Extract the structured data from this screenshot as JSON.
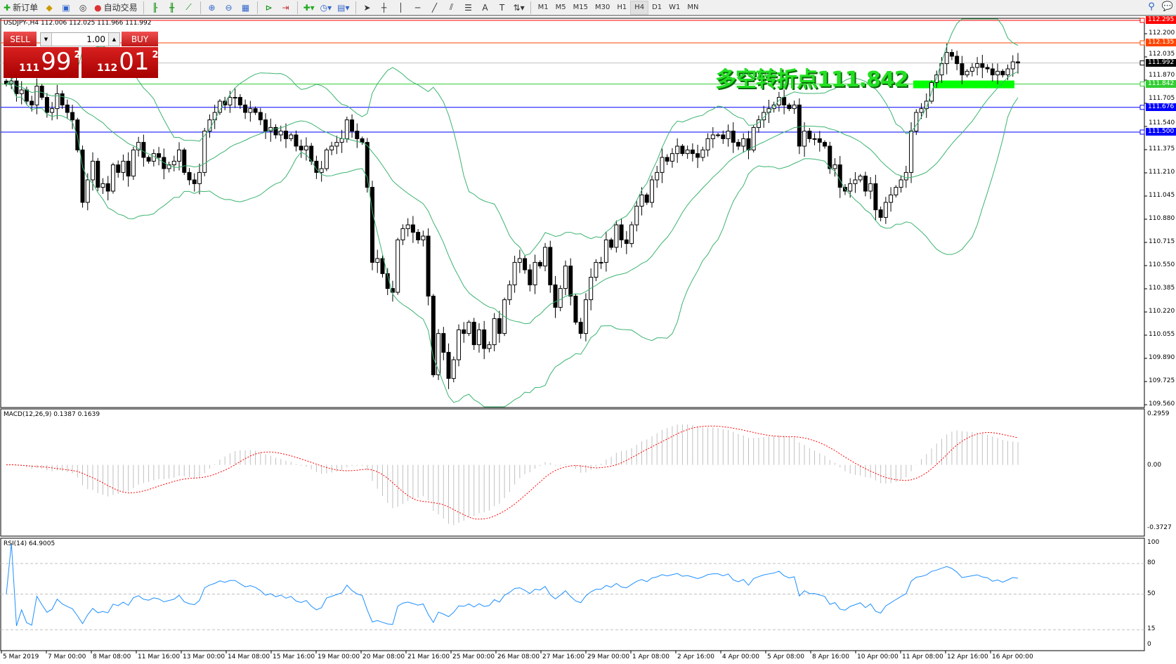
{
  "toolbar": {
    "new_order": "新订单",
    "auto_trading": "自动交易",
    "timeframes": [
      "M1",
      "M5",
      "M15",
      "M30",
      "H1",
      "H4",
      "D1",
      "W1",
      "MN"
    ],
    "active_timeframe": "H4",
    "icons": [
      "new-order-icon",
      "market-watch-icon",
      "navigator-icon",
      "signals-icon",
      "auto-trading-icon",
      "bar-chart-icon",
      "candlestick-icon",
      "line-chart-icon",
      "zoom-in-icon",
      "zoom-out-icon",
      "tile-windows-icon",
      "chart-shift-icon",
      "autoscroll-icon",
      "new-indicator-icon",
      "periods-icon",
      "templates-icon",
      "cursor-icon",
      "crosshair-icon",
      "vertical-line-icon",
      "horizontal-line-icon",
      "trendline-icon",
      "fibonacci-fan-icon",
      "fibonacci-icon",
      "text-icon",
      "text-label-icon",
      "arrows-icon",
      "search-icon",
      "chat-icon"
    ]
  },
  "chart": {
    "header": "USDJPY-,H4  112.006 112.025 111.966 111.992",
    "annotation": "多空转折点111.842",
    "colors": {
      "annotation": "#22e022",
      "bull": "#ffffff",
      "bear": "#000000",
      "bands": "#3cb371",
      "macd_hist": "#c0c0c0",
      "macd_signal": "#ff0000",
      "rsi": "#1e90ff"
    }
  },
  "trade_panel": {
    "sell": "SELL",
    "buy": "BUY",
    "lot": "1.00",
    "sell_price": {
      "prefix": "111",
      "main": "99",
      "sup": "2"
    },
    "buy_price": {
      "prefix": "112",
      "main": "01",
      "sup": "2"
    }
  },
  "price_axis": [
    "112.200",
    "112.035",
    "111.870",
    "111.705",
    "111.540",
    "111.375",
    "111.210",
    "111.045",
    "110.880",
    "110.715",
    "110.550",
    "110.385",
    "110.220",
    "110.055",
    "109.890",
    "109.725",
    "109.560"
  ],
  "levels": [
    {
      "price": 112.295,
      "label": "112.295",
      "color": "#ff0000"
    },
    {
      "price": 112.135,
      "label": "112.135",
      "color": "#ff4500"
    },
    {
      "price": 111.992,
      "label": "111.992",
      "color": "#000000",
      "line": "#c0c0c0"
    },
    {
      "price": 111.842,
      "label": "111.842",
      "color": "#32cd32"
    },
    {
      "price": 111.676,
      "label": "111.676",
      "color": "#0000ff"
    },
    {
      "price": 111.5,
      "label": "111.500",
      "color": "#0000ff"
    }
  ],
  "macd": {
    "label": "MACD(12,26,9) 0.1387 0.1639",
    "axis": [
      "0.2959",
      "0.00",
      "-0.3727"
    ]
  },
  "rsi": {
    "label": "RSI(14) 64.9005",
    "axis": [
      "100",
      "80",
      "50",
      "15",
      "0"
    ]
  },
  "time_axis": [
    "5 Mar 2019",
    "7 Mar 00:00",
    "8 Mar 08:00",
    "11 Mar 16:00",
    "13 Mar 00:00",
    "14 Mar 08:00",
    "15 Mar 16:00",
    "19 Mar 00:00",
    "20 Mar 08:00",
    "21 Mar 16:00",
    "25 Mar 00:00",
    "26 Mar 08:00",
    "27 Mar 16:00",
    "29 Mar 00:00",
    "1 Apr 08:00",
    "2 Apr 16:00",
    "4 Apr 00:00",
    "5 Apr 08:00",
    "8 Apr 16:00",
    "10 Apr 00:00",
    "11 Apr 08:00",
    "12 Apr 16:00",
    "16 Apr 00:00"
  ],
  "chart_data": {
    "type": "candlestick",
    "symbol": "USDJPY-",
    "timeframe": "H4",
    "ylim": [
      109.56,
      112.295
    ],
    "closes": [
      111.843,
      111.864,
      111.773,
      111.8,
      111.72,
      111.693,
      111.827,
      111.747,
      111.64,
      111.667,
      111.773,
      111.693,
      111.64,
      111.587,
      111.373,
      111.0,
      111.16,
      111.293,
      111.107,
      111.133,
      111.08,
      111.267,
      111.213,
      111.293,
      111.187,
      111.373,
      111.427,
      111.32,
      111.293,
      111.347,
      111.32,
      111.24,
      111.267,
      111.293,
      111.373,
      111.213,
      111.16,
      111.133,
      111.213,
      111.507,
      111.587,
      111.64,
      111.72,
      111.693,
      111.747,
      111.747,
      111.693,
      111.64,
      111.667,
      111.64,
      111.587,
      111.507,
      111.533,
      111.48,
      111.507,
      111.453,
      111.48,
      111.4,
      111.373,
      111.4,
      111.293,
      111.213,
      111.24,
      111.373,
      111.4,
      111.427,
      111.453,
      111.587,
      111.507,
      111.453,
      111.427,
      111.107,
      110.573,
      110.6,
      110.493,
      110.387,
      110.36,
      110.733,
      110.813,
      110.84,
      110.787,
      110.733,
      110.76,
      110.333,
      109.773,
      110.067,
      109.933,
      109.747,
      109.88,
      110.093,
      110.067,
      110.147,
      109.987,
      110.093,
      109.96,
      109.987,
      110.173,
      110.067,
      110.307,
      110.413,
      110.573,
      110.6,
      110.52,
      110.413,
      110.573,
      110.547,
      110.68,
      110.413,
      110.253,
      110.387,
      110.547,
      110.333,
      110.147,
      110.067,
      110.307,
      110.467,
      110.573,
      110.573,
      110.733,
      110.68,
      110.84,
      110.733,
      110.707,
      110.84,
      110.973,
      111.053,
      111.0,
      111.16,
      111.213,
      111.32,
      111.293,
      111.347,
      111.4,
      111.347,
      111.373,
      111.347,
      111.32,
      111.373,
      111.453,
      111.48,
      111.48,
      111.453,
      111.507,
      111.427,
      111.4,
      111.453,
      111.373,
      111.533,
      111.587,
      111.64,
      111.667,
      111.693,
      111.747,
      111.693,
      111.667,
      111.693,
      111.4,
      111.507,
      111.453,
      111.453,
      111.427,
      111.4,
      111.24,
      111.267,
      111.107,
      111.08,
      111.133,
      111.16,
      111.187,
      111.08,
      111.133,
      110.947,
      110.893,
      111.0,
      111.053,
      111.107,
      111.16,
      111.213,
      111.507,
      111.64,
      111.667,
      111.72,
      111.853,
      111.907,
      111.987,
      112.067,
      112.04,
      111.987,
      111.907,
      111.933,
      111.96,
      111.987,
      111.96,
      111.95,
      111.907,
      111.933,
      111.907,
      111.95,
      112.0,
      111.992
    ],
    "indicators": [
      "Bollinger Bands(20,2)",
      "MACD(12,26,9)",
      "RSI(14)"
    ]
  }
}
